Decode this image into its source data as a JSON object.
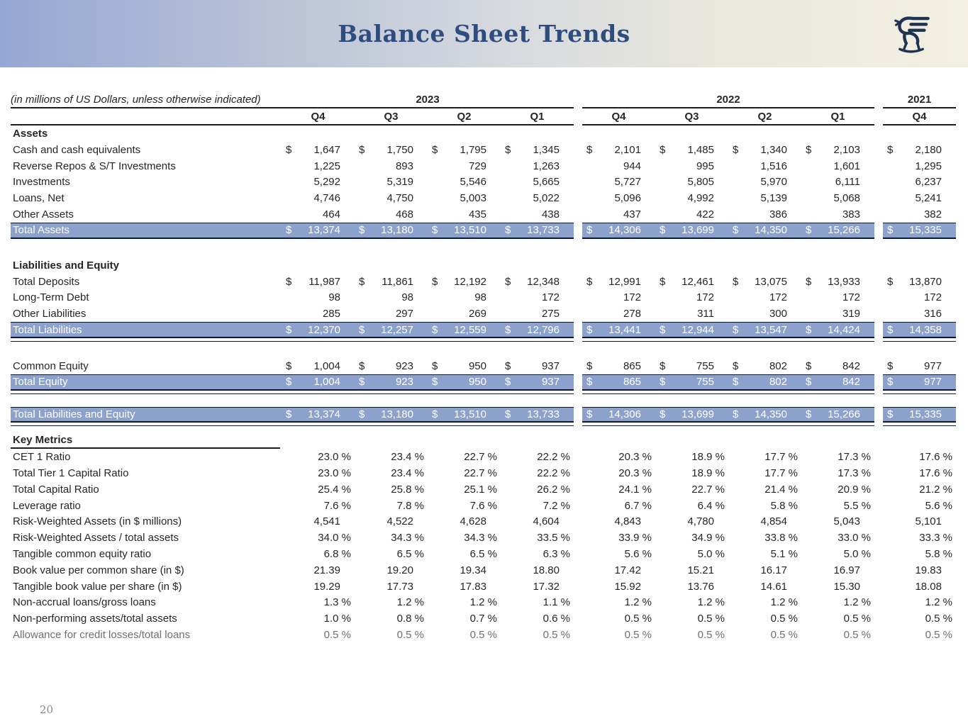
{
  "banner": {
    "title": "Balance Sheet Trends",
    "logo_icon": "griffin-logo",
    "title_color": "#2e4d7e",
    "gradient_left": "#95a7d4",
    "gradient_right": "#f3f0e1"
  },
  "page_number": "20",
  "colors": {
    "highlight_row": "#8da1cd",
    "highlight_text": "#ffffff",
    "rule_dark": "#0e1830",
    "body_text": "#262626"
  },
  "table": {
    "note": "(in millions of US Dollars, unless otherwise indicated)",
    "years": [
      {
        "label": "2023",
        "quarters": [
          "Q4",
          "Q3",
          "Q2",
          "Q1"
        ]
      },
      {
        "label": "2022",
        "quarters": [
          "Q4",
          "Q3",
          "Q2",
          "Q1"
        ]
      },
      {
        "label": "2021",
        "quarters": [
          "Q4"
        ]
      }
    ],
    "sections": [
      {
        "heading": "Assets",
        "heading_underline": false,
        "rows": [
          {
            "label": "Cash and cash equivalents",
            "dollar": true,
            "highlight": false,
            "double_underline": false,
            "muted": false,
            "values": [
              "1,647",
              "1,750",
              "1,795",
              "1,345",
              "2,101",
              "1,485",
              "1,340",
              "2,103",
              "2,180"
            ]
          },
          {
            "label": "Reverse Repos & S/T Investments",
            "dollar": false,
            "highlight": false,
            "double_underline": false,
            "muted": false,
            "values": [
              "1,225",
              "893",
              "729",
              "1,263",
              "944",
              "995",
              "1,516",
              "1,601",
              "1,295"
            ]
          },
          {
            "label": "Investments",
            "dollar": false,
            "highlight": false,
            "double_underline": false,
            "muted": false,
            "values": [
              "5,292",
              "5,319",
              "5,546",
              "5,665",
              "5,727",
              "5,805",
              "5,970",
              "6,111",
              "6,237"
            ]
          },
          {
            "label": "Loans, Net",
            "dollar": false,
            "highlight": false,
            "double_underline": false,
            "muted": false,
            "values": [
              "4,746",
              "4,750",
              "5,003",
              "5,022",
              "5,096",
              "4,992",
              "5,139",
              "5,068",
              "5,241"
            ]
          },
          {
            "label": "Other Assets",
            "dollar": false,
            "highlight": false,
            "double_underline": false,
            "muted": false,
            "values": [
              "464",
              "468",
              "435",
              "438",
              "437",
              "422",
              "386",
              "383",
              "382"
            ]
          },
          {
            "label": "Total Assets",
            "dollar": true,
            "highlight": true,
            "double_underline": false,
            "muted": false,
            "values": [
              "13,374",
              "13,180",
              "13,510",
              "13,733",
              "14,306",
              "13,699",
              "14,350",
              "15,266",
              "15,335"
            ]
          }
        ]
      },
      {
        "heading": "Liabilities and Equity",
        "heading_underline": false,
        "rows": [
          {
            "label": "Total Deposits",
            "dollar": true,
            "highlight": false,
            "double_underline": false,
            "muted": false,
            "values": [
              "11,987",
              "11,861",
              "12,192",
              "12,348",
              "12,991",
              "12,461",
              "13,075",
              "13,933",
              "13,870"
            ]
          },
          {
            "label": "Long-Term Debt",
            "dollar": false,
            "highlight": false,
            "double_underline": false,
            "muted": false,
            "values": [
              "98",
              "98",
              "98",
              "172",
              "172",
              "172",
              "172",
              "172",
              "172"
            ]
          },
          {
            "label": "Other Liabilities",
            "dollar": false,
            "highlight": false,
            "double_underline": false,
            "muted": false,
            "values": [
              "285",
              "297",
              "269",
              "275",
              "278",
              "311",
              "300",
              "319",
              "316"
            ]
          },
          {
            "label": "Total Liabilities",
            "dollar": true,
            "highlight": true,
            "double_underline": true,
            "muted": false,
            "values": [
              "12,370",
              "12,257",
              "12,559",
              "12,796",
              "13,441",
              "12,944",
              "13,547",
              "14,424",
              "14,358"
            ]
          }
        ]
      },
      {
        "heading": null,
        "heading_underline": false,
        "rows": [
          {
            "label": "Common Equity",
            "dollar": true,
            "highlight": false,
            "double_underline": false,
            "muted": false,
            "values": [
              "1,004",
              "923",
              "950",
              "937",
              "865",
              "755",
              "802",
              "842",
              "977"
            ]
          },
          {
            "label": "Total Equity",
            "dollar": true,
            "highlight": true,
            "double_underline": true,
            "muted": false,
            "values": [
              "1,004",
              "923",
              "950",
              "937",
              "865",
              "755",
              "802",
              "842",
              "977"
            ]
          }
        ]
      },
      {
        "heading": null,
        "heading_underline": false,
        "rows": [
          {
            "label": "Total Liabilities and Equity",
            "dollar": true,
            "highlight": true,
            "double_underline": true,
            "muted": false,
            "values": [
              "13,374",
              "13,180",
              "13,510",
              "13,733",
              "14,306",
              "13,699",
              "14,350",
              "15,266",
              "15,335"
            ]
          }
        ]
      },
      {
        "heading": "Key Metrics",
        "heading_underline": true,
        "rows": [
          {
            "label": "CET 1 Ratio",
            "dollar": false,
            "highlight": false,
            "double_underline": false,
            "muted": false,
            "values": [
              "23.0 %",
              "23.4 %",
              "22.7 %",
              "22.2 %",
              "20.3 %",
              "18.9 %",
              "17.7 %",
              "17.3 %",
              "17.6 %"
            ]
          },
          {
            "label": "Total Tier 1 Capital Ratio",
            "dollar": false,
            "highlight": false,
            "double_underline": false,
            "muted": false,
            "values": [
              "23.0 %",
              "23.4 %",
              "22.7 %",
              "22.2 %",
              "20.3 %",
              "18.9 %",
              "17.7 %",
              "17.3 %",
              "17.6 %"
            ]
          },
          {
            "label": "Total Capital Ratio",
            "dollar": false,
            "highlight": false,
            "double_underline": false,
            "muted": false,
            "values": [
              "25.4 %",
              "25.8 %",
              "25.1 %",
              "26.2 %",
              "24.1 %",
              "22.7 %",
              "21.4 %",
              "20.9 %",
              "21.2 %"
            ]
          },
          {
            "label": "Leverage ratio",
            "dollar": false,
            "highlight": false,
            "double_underline": false,
            "muted": false,
            "values": [
              "7.6 %",
              "7.8 %",
              "7.6 %",
              "7.2 %",
              "6.7 %",
              "6.4 %",
              "5.8 %",
              "5.5 %",
              "5.6 %"
            ]
          },
          {
            "label": "Risk-Weighted Assets (in $ millions)",
            "dollar": false,
            "highlight": false,
            "double_underline": false,
            "muted": false,
            "values": [
              "4,541",
              "4,522",
              "4,628",
              "4,604",
              "4,843",
              "4,780",
              "4,854",
              "5,043",
              "5,101"
            ]
          },
          {
            "label": "Risk-Weighted Assets / total assets",
            "dollar": false,
            "highlight": false,
            "double_underline": false,
            "muted": false,
            "values": [
              "34.0 %",
              "34.3 %",
              "34.3 %",
              "33.5 %",
              "33.9 %",
              "34.9 %",
              "33.8 %",
              "33.0 %",
              "33.3 %"
            ]
          },
          {
            "label": "Tangible common equity ratio",
            "dollar": false,
            "highlight": false,
            "double_underline": false,
            "muted": false,
            "values": [
              "6.8 %",
              "6.5 %",
              "6.5 %",
              "6.3 %",
              "5.6 %",
              "5.0 %",
              "5.1 %",
              "5.0 %",
              "5.8 %"
            ]
          },
          {
            "label": "Book value per common share (in $)",
            "dollar": false,
            "highlight": false,
            "double_underline": false,
            "muted": false,
            "values": [
              "21.39",
              "19.20",
              "19.34",
              "18.80",
              "17.42",
              "15.21",
              "16.17",
              "16.97",
              "19.83"
            ]
          },
          {
            "label": "Tangible book value per share (in $)",
            "dollar": false,
            "highlight": false,
            "double_underline": false,
            "muted": false,
            "values": [
              "19.29",
              "17.73",
              "17.83",
              "17.32",
              "15.92",
              "13.76",
              "14.61",
              "15.30",
              "18.08"
            ]
          },
          {
            "label": "Non-accrual loans/gross loans",
            "dollar": false,
            "highlight": false,
            "double_underline": false,
            "muted": false,
            "values": [
              "1.3 %",
              "1.2 %",
              "1.2 %",
              "1.1 %",
              "1.2 %",
              "1.2 %",
              "1.2 %",
              "1.2 %",
              "1.2 %"
            ]
          },
          {
            "label": "Non-performing assets/total assets",
            "dollar": false,
            "highlight": false,
            "double_underline": false,
            "muted": false,
            "values": [
              "1.0 %",
              "0.8 %",
              "0.7 %",
              "0.6 %",
              "0.5 %",
              "0.5 %",
              "0.5 %",
              "0.5 %",
              "0.5 %"
            ]
          },
          {
            "label": "Allowance for credit losses/total loans",
            "dollar": false,
            "highlight": false,
            "double_underline": false,
            "muted": true,
            "values": [
              "0.5 %",
              "0.5 %",
              "0.5 %",
              "0.5 %",
              "0.5 %",
              "0.5 %",
              "0.5 %",
              "0.5 %",
              "0.5 %"
            ]
          }
        ]
      }
    ]
  }
}
